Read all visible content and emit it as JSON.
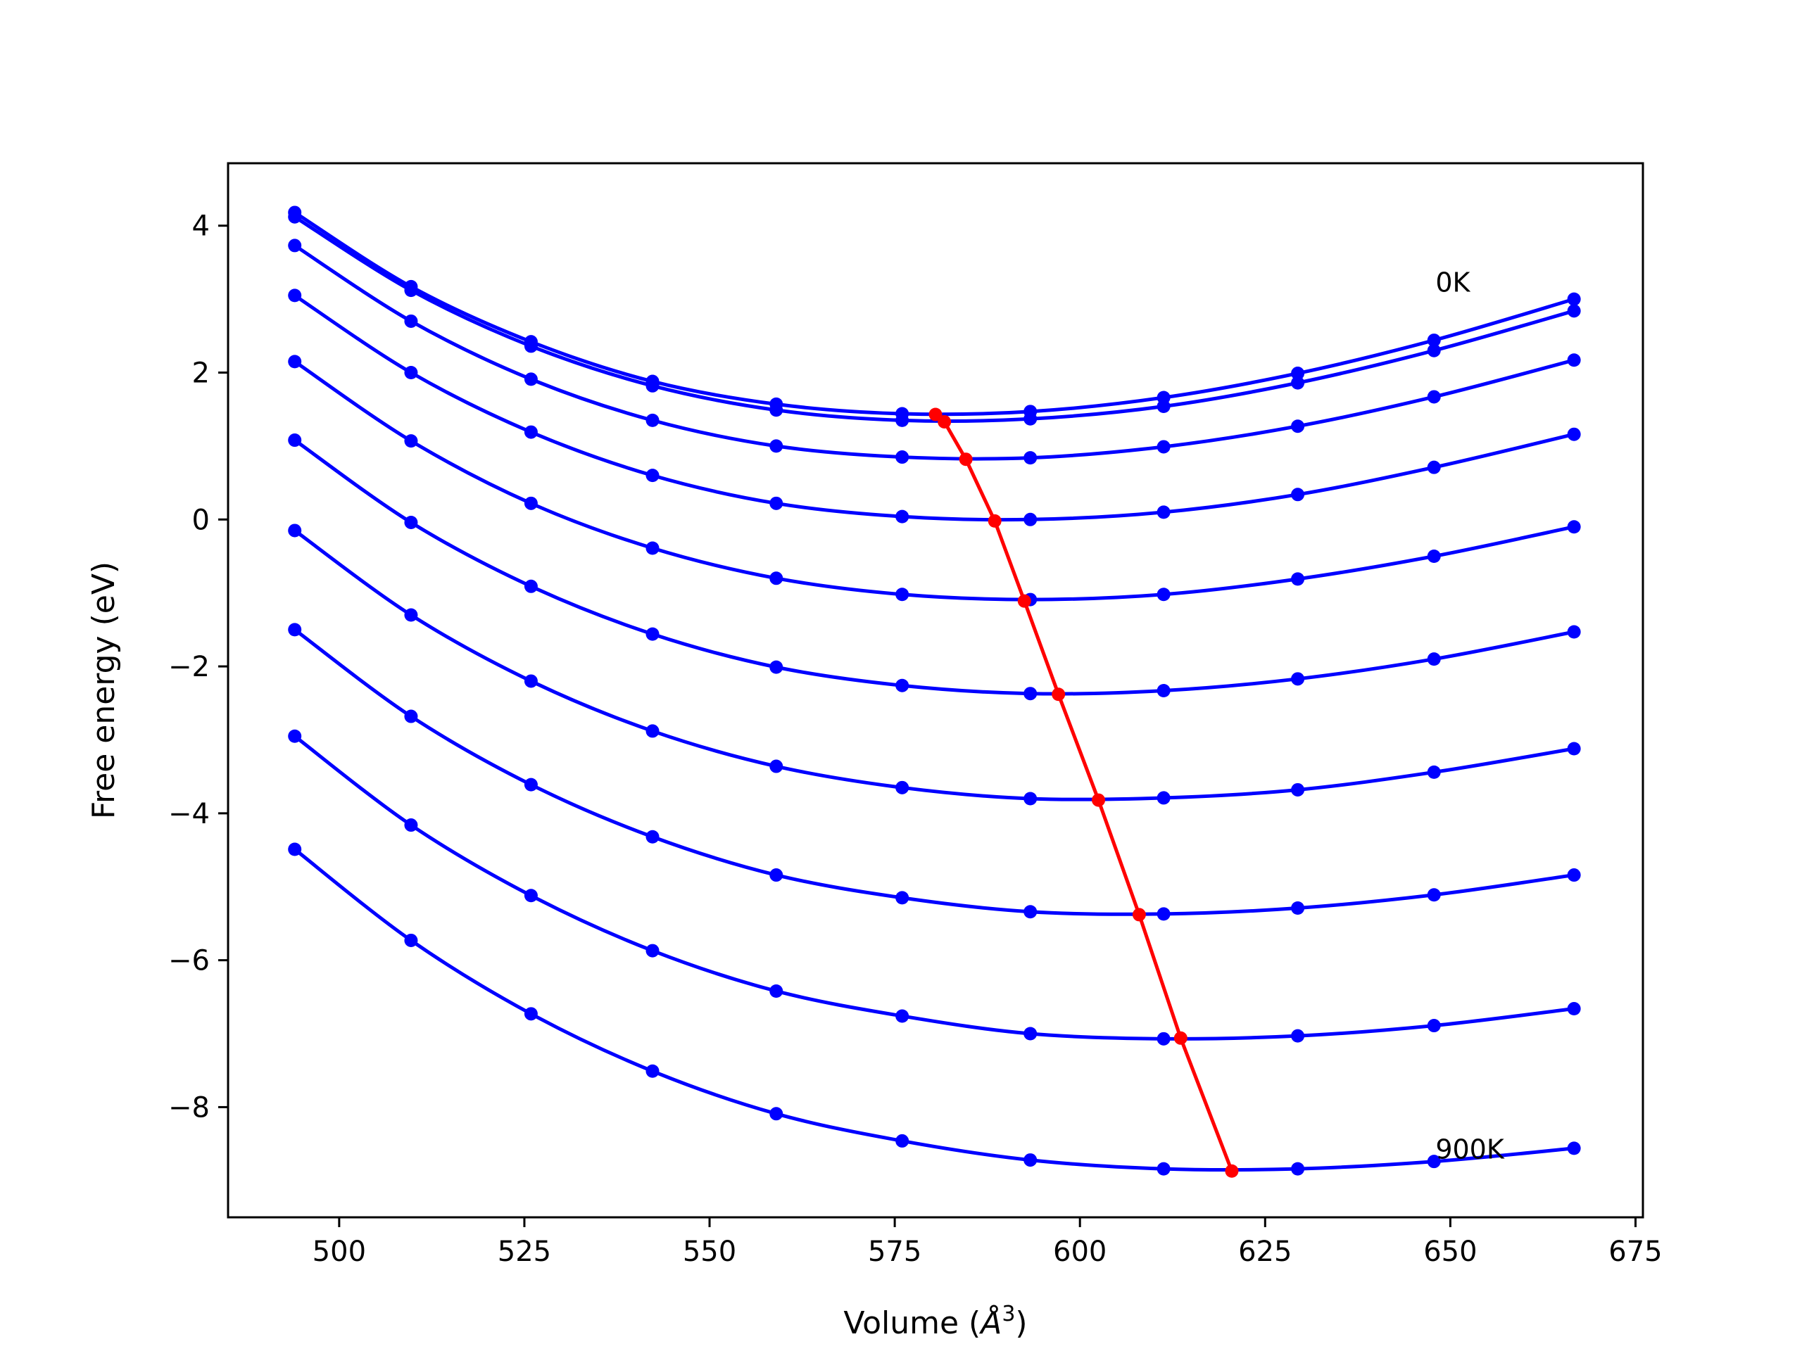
{
  "chart_data": {
    "type": "line",
    "xlabel": "Volume (",
    "xlabel_unit": "Å",
    "xlabel_exp": "3",
    "xlabel_close": ")",
    "ylabel": "Free energy (eV)",
    "xlim": [
      485,
      676
    ],
    "ylim": [
      -9.5,
      4.85
    ],
    "xticks": [
      500,
      525,
      550,
      575,
      600,
      625,
      650,
      675
    ],
    "yticks": [
      -8,
      -6,
      -4,
      -2,
      0,
      2,
      4
    ],
    "annotations": [
      {
        "text": "0K",
        "x": 648,
        "y": 3.1
      },
      {
        "text": "900K",
        "x": 648,
        "y": -8.7
      }
    ],
    "x": [
      494,
      509.7,
      525.9,
      542.3,
      559,
      576,
      593.3,
      611.3,
      629.4,
      647.8,
      666.7
    ],
    "series": [
      {
        "color": "#0000ff",
        "values": [
          4.18,
          3.17,
          2.42,
          1.88,
          1.57,
          1.44,
          1.47,
          1.66,
          1.99,
          2.44,
          3.0
        ]
      },
      {
        "color": "#0000ff",
        "values": [
          4.12,
          3.12,
          2.36,
          1.82,
          1.49,
          1.35,
          1.37,
          1.54,
          1.86,
          2.3,
          2.84
        ]
      },
      {
        "color": "#0000ff",
        "values": [
          3.73,
          2.7,
          1.91,
          1.35,
          1.0,
          0.85,
          0.84,
          0.99,
          1.27,
          1.67,
          2.17
        ]
      },
      {
        "color": "#0000ff",
        "values": [
          3.05,
          2.0,
          1.19,
          0.6,
          0.22,
          0.04,
          0.0,
          0.1,
          0.34,
          0.71,
          1.16
        ]
      },
      {
        "color": "#0000ff",
        "values": [
          2.15,
          1.07,
          0.22,
          -0.39,
          -0.8,
          -1.02,
          -1.09,
          -1.02,
          -0.81,
          -0.5,
          -0.1
        ]
      },
      {
        "color": "#0000ff",
        "values": [
          1.08,
          -0.04,
          -0.91,
          -1.56,
          -2.01,
          -2.26,
          -2.37,
          -2.33,
          -2.17,
          -1.9,
          -1.53
        ]
      },
      {
        "color": "#0000ff",
        "values": [
          -0.15,
          -1.3,
          -2.2,
          -2.88,
          -3.36,
          -3.65,
          -3.8,
          -3.79,
          -3.68,
          -3.44,
          -3.12
        ]
      },
      {
        "color": "#0000ff",
        "values": [
          -1.5,
          -2.68,
          -3.61,
          -4.32,
          -4.84,
          -5.15,
          -5.34,
          -5.37,
          -5.29,
          -5.11,
          -4.84
        ]
      },
      {
        "color": "#0000ff",
        "values": [
          -2.95,
          -4.16,
          -5.12,
          -5.87,
          -6.42,
          -6.76,
          -7.0,
          -7.07,
          -7.03,
          -6.89,
          -6.66
        ]
      },
      {
        "color": "#0000ff",
        "values": [
          -4.49,
          -5.73,
          -6.73,
          -7.51,
          -8.09,
          -8.46,
          -8.72,
          -8.84,
          -8.84,
          -8.74,
          -8.56
        ]
      }
    ],
    "minima_series": {
      "color": "#ff0000",
      "x": [
        580.5,
        581.7,
        584.6,
        588.5,
        592.5,
        597.1,
        602.5,
        608,
        613.6,
        620.5
      ],
      "values": [
        1.43,
        1.33,
        0.82,
        -0.02,
        -1.11,
        -2.38,
        -3.82,
        -5.38,
        -7.06,
        -8.87
      ]
    }
  }
}
